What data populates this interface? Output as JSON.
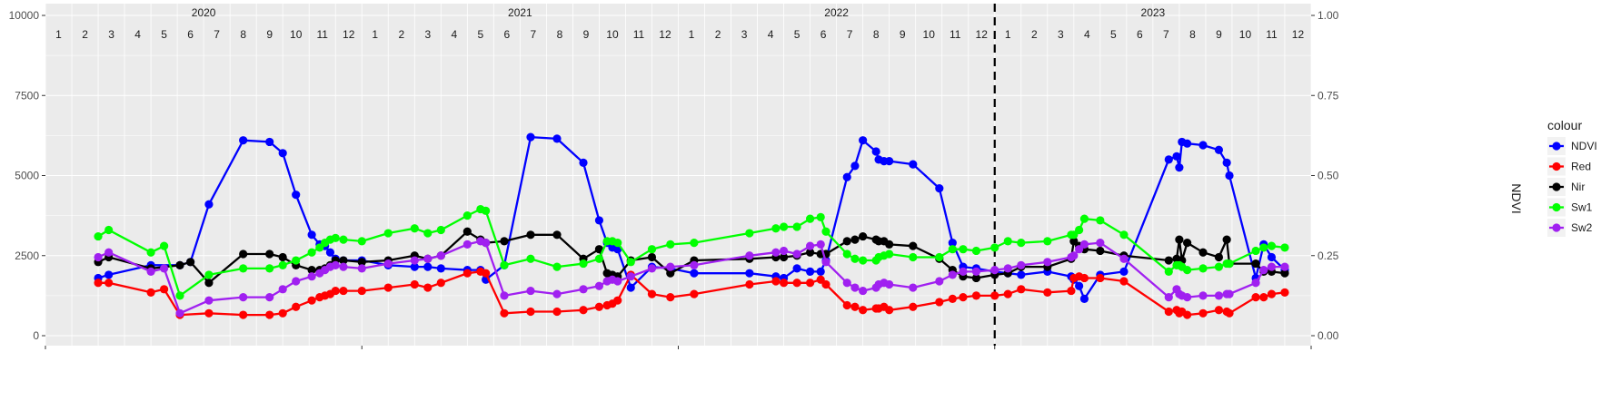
{
  "chart_data": {
    "type": "line",
    "title": "",
    "xlabel": "",
    "ylabel": "",
    "y2label": "NDVI",
    "ylim": [
      0,
      10000
    ],
    "y2lim": [
      0,
      1
    ],
    "yticks": [
      "0",
      "2500",
      "5000",
      "7500",
      "10000"
    ],
    "yticks_values": [
      0,
      2500,
      5000,
      7500,
      10000
    ],
    "y2ticks": [
      "0.00",
      "0.25",
      "0.50",
      "0.75",
      "1.00"
    ],
    "y2ticks_values": [
      0,
      0.25,
      0.5,
      0.75,
      1.0
    ],
    "xlim": [
      0,
      48
    ],
    "years": [
      {
        "label": "2020",
        "start": 0
      },
      {
        "label": "2021",
        "start": 12
      },
      {
        "label": "2022",
        "start": 24
      },
      {
        "label": "2023",
        "start": 36
      }
    ],
    "months": [
      "1",
      "2",
      "3",
      "4",
      "5",
      "6",
      "7",
      "8",
      "9",
      "10",
      "11",
      "12",
      "1",
      "2",
      "3",
      "4",
      "5",
      "6",
      "7",
      "8",
      "9",
      "10",
      "11",
      "12",
      "1",
      "2",
      "3",
      "4",
      "5",
      "6",
      "7",
      "8",
      "9",
      "10",
      "11",
      "12",
      "1",
      "2",
      "3",
      "4",
      "5",
      "6",
      "7",
      "8",
      "9",
      "10",
      "11",
      "12"
    ],
    "vline_x": 36,
    "legend": {
      "title": "colour",
      "position": "right"
    },
    "grid": true,
    "series": [
      {
        "name": "NDVI",
        "color": "#0000ff",
        "axis": "y2",
        "x": [
          2.0,
          2.4,
          4.0,
          5.1,
          5.5,
          6.2,
          7.5,
          8.5,
          9.0,
          9.5,
          10.1,
          10.4,
          10.6,
          10.8,
          11.0,
          11.3,
          12.0,
          13.0,
          14.0,
          14.5,
          15.0,
          16.0,
          16.5,
          16.7,
          17.4,
          18.4,
          19.4,
          20.4,
          21.0,
          21.3,
          21.5,
          21.7,
          22.2,
          23.0,
          23.7,
          24.6,
          26.7,
          27.7,
          28.0,
          28.5,
          29.0,
          29.4,
          29.6,
          30.4,
          30.7,
          31.0,
          31.5,
          31.6,
          31.8,
          32.0,
          32.9,
          33.9,
          34.4,
          34.8,
          35.3,
          36.0,
          36.5,
          37.0,
          38.0,
          38.9,
          39.0,
          39.2,
          39.4,
          40.0,
          40.9,
          42.6,
          42.9,
          43.0,
          43.1,
          43.3,
          43.9,
          44.5,
          44.8,
          44.9,
          45.9,
          46.2,
          46.5,
          47.0
        ],
        "y": [
          0.18,
          0.19,
          0.22,
          0.22,
          0.23,
          0.41,
          0.61,
          0.605,
          0.57,
          0.44,
          0.315,
          0.285,
          0.28,
          0.26,
          0.24,
          0.235,
          0.235,
          0.22,
          0.215,
          0.215,
          0.21,
          0.205,
          0.205,
          0.175,
          0.22,
          0.62,
          0.615,
          0.54,
          0.36,
          0.29,
          0.275,
          0.27,
          0.15,
          0.215,
          0.21,
          0.195,
          0.195,
          0.185,
          0.18,
          0.21,
          0.2,
          0.2,
          0.235,
          0.495,
          0.53,
          0.61,
          0.575,
          0.55,
          0.545,
          0.545,
          0.535,
          0.46,
          0.29,
          0.215,
          0.21,
          0.2,
          0.195,
          0.19,
          0.2,
          0.185,
          0.175,
          0.155,
          0.115,
          0.19,
          0.2,
          0.55,
          0.56,
          0.525,
          0.605,
          0.6,
          0.595,
          0.58,
          0.54,
          0.5,
          0.18,
          0.285,
          0.245,
          0.205
        ]
      },
      {
        "name": "Red",
        "color": "#ff0000",
        "axis": "y",
        "x": [
          2.0,
          2.4,
          4.0,
          4.5,
          5.1,
          6.2,
          7.5,
          8.5,
          9.0,
          9.5,
          10.1,
          10.4,
          10.6,
          10.8,
          11.0,
          11.3,
          12.0,
          13.0,
          14.0,
          14.5,
          15.0,
          16.0,
          16.5,
          16.7,
          17.4,
          18.4,
          19.4,
          20.4,
          21.0,
          21.3,
          21.5,
          21.7,
          22.2,
          23.0,
          23.7,
          24.6,
          26.7,
          27.7,
          28.0,
          28.5,
          29.0,
          29.4,
          29.6,
          30.4,
          30.7,
          31.0,
          31.5,
          31.6,
          31.8,
          32.0,
          32.9,
          33.9,
          34.4,
          34.8,
          35.3,
          36.0,
          36.5,
          37.0,
          38.0,
          38.9,
          39.0,
          39.2,
          39.4,
          40.0,
          40.9,
          42.6,
          42.9,
          43.0,
          43.1,
          43.3,
          43.9,
          44.5,
          44.8,
          44.9,
          45.9,
          46.2,
          46.5,
          47.0
        ],
        "y": [
          1650,
          1650,
          1350,
          1450,
          650,
          700,
          650,
          650,
          700,
          900,
          1100,
          1200,
          1250,
          1300,
          1400,
          1400,
          1400,
          1500,
          1600,
          1500,
          1650,
          1950,
          2000,
          1950,
          700,
          750,
          750,
          800,
          900,
          950,
          1000,
          1100,
          1900,
          1300,
          1200,
          1300,
          1600,
          1700,
          1650,
          1650,
          1650,
          1750,
          1600,
          950,
          900,
          800,
          850,
          850,
          900,
          800,
          900,
          1050,
          1150,
          1200,
          1250,
          1250,
          1300,
          1450,
          1350,
          1400,
          1800,
          1850,
          1800,
          1800,
          1700,
          750,
          800,
          700,
          750,
          650,
          700,
          800,
          750,
          700,
          1200,
          1200,
          1300,
          1350
        ]
      },
      {
        "name": "Nir",
        "color": "#000000",
        "axis": "y",
        "x": [
          2.0,
          2.4,
          4.0,
          5.1,
          5.5,
          6.2,
          7.5,
          8.5,
          9.0,
          9.5,
          10.1,
          10.4,
          10.6,
          10.8,
          11.0,
          11.3,
          12.0,
          13.0,
          14.0,
          14.5,
          15.0,
          16.0,
          16.5,
          16.7,
          17.4,
          18.4,
          19.4,
          20.4,
          21.0,
          21.3,
          21.5,
          21.7,
          22.2,
          23.0,
          23.7,
          24.6,
          26.7,
          27.7,
          28.0,
          28.5,
          29.0,
          29.4,
          29.6,
          30.4,
          30.7,
          31.0,
          31.5,
          31.6,
          31.8,
          32.0,
          32.9,
          33.9,
          34.4,
          34.8,
          35.3,
          36.0,
          36.5,
          37.0,
          38.0,
          38.9,
          39.0,
          39.2,
          39.4,
          40.0,
          40.9,
          42.6,
          42.9,
          43.0,
          43.1,
          43.3,
          43.9,
          44.5,
          44.8,
          44.9,
          45.9,
          46.2,
          46.5,
          47.0
        ],
        "y": [
          2300,
          2450,
          2100,
          2200,
          2300,
          1650,
          2550,
          2550,
          2450,
          2200,
          2050,
          2050,
          2100,
          2200,
          2350,
          2350,
          2300,
          2350,
          2500,
          2400,
          2500,
          3250,
          3000,
          2900,
          2950,
          3150,
          3150,
          2400,
          2700,
          1950,
          1900,
          1850,
          2350,
          2450,
          1950,
          2350,
          2400,
          2450,
          2450,
          2500,
          2600,
          2550,
          2550,
          2950,
          3000,
          3100,
          3000,
          2950,
          2950,
          2850,
          2800,
          2400,
          2050,
          1850,
          1800,
          1900,
          1950,
          2150,
          2150,
          2400,
          2950,
          2800,
          2700,
          2650,
          2500,
          2350,
          2400,
          3000,
          2350,
          2900,
          2600,
          2450,
          3000,
          2250,
          2250,
          2000,
          2000,
          1950
        ]
      },
      {
        "name": "Sw1",
        "color": "#00ff00",
        "axis": "y",
        "x": [
          2.0,
          2.4,
          4.0,
          4.5,
          5.1,
          6.2,
          7.5,
          8.5,
          9.0,
          9.5,
          10.1,
          10.4,
          10.6,
          10.8,
          11.0,
          11.3,
          12.0,
          13.0,
          14.0,
          14.5,
          15.0,
          16.0,
          16.5,
          16.7,
          17.4,
          18.4,
          19.4,
          20.4,
          21.0,
          21.3,
          21.5,
          21.7,
          22.2,
          23.0,
          23.7,
          24.6,
          26.7,
          27.7,
          28.0,
          28.5,
          29.0,
          29.4,
          29.6,
          30.4,
          30.7,
          31.0,
          31.5,
          31.6,
          31.8,
          32.0,
          32.9,
          33.9,
          34.4,
          34.8,
          35.3,
          36.0,
          36.5,
          37.0,
          38.0,
          38.9,
          39.0,
          39.2,
          39.4,
          40.0,
          40.9,
          42.6,
          42.9,
          43.0,
          43.1,
          43.3,
          43.9,
          44.5,
          44.8,
          44.9,
          45.9,
          46.2,
          46.5,
          47.0
        ],
        "y": [
          3100,
          3300,
          2600,
          2800,
          1250,
          1900,
          2100,
          2100,
          2200,
          2350,
          2600,
          2750,
          2900,
          3000,
          3050,
          3000,
          2950,
          3200,
          3350,
          3200,
          3300,
          3750,
          3950,
          3900,
          2200,
          2400,
          2150,
          2250,
          2400,
          2950,
          2950,
          2900,
          2300,
          2700,
          2850,
          2900,
          3200,
          3350,
          3400,
          3400,
          3650,
          3700,
          3250,
          2550,
          2400,
          2350,
          2350,
          2450,
          2500,
          2550,
          2450,
          2450,
          2700,
          2700,
          2650,
          2750,
          2950,
          2900,
          2950,
          3150,
          3150,
          3300,
          3650,
          3600,
          3150,
          2000,
          2200,
          2200,
          2150,
          2050,
          2100,
          2150,
          2250,
          2250,
          2650,
          2750,
          2800,
          2750
        ]
      },
      {
        "name": "Sw2",
        "color": "#a020f0",
        "axis": "y",
        "x": [
          2.0,
          2.4,
          4.0,
          4.5,
          5.1,
          6.2,
          7.5,
          8.5,
          9.0,
          9.5,
          10.1,
          10.4,
          10.6,
          10.8,
          11.0,
          11.3,
          12.0,
          13.0,
          14.0,
          14.5,
          15.0,
          16.0,
          16.5,
          16.7,
          17.4,
          18.4,
          19.4,
          20.4,
          21.0,
          21.3,
          21.5,
          21.7,
          22.2,
          23.0,
          23.7,
          24.6,
          26.7,
          27.7,
          28.0,
          28.5,
          29.0,
          29.4,
          29.6,
          30.4,
          30.7,
          31.0,
          31.5,
          31.6,
          31.8,
          32.0,
          32.9,
          33.9,
          34.4,
          34.8,
          35.3,
          36.0,
          36.5,
          37.0,
          38.0,
          38.9,
          39.0,
          39.2,
          39.4,
          40.0,
          40.9,
          42.6,
          42.9,
          43.0,
          43.1,
          43.3,
          43.9,
          44.5,
          44.8,
          44.9,
          45.9,
          46.2,
          46.5,
          47.0
        ],
        "y": [
          2450,
          2600,
          2000,
          2100,
          700,
          1100,
          1200,
          1200,
          1450,
          1700,
          1850,
          1950,
          2050,
          2150,
          2200,
          2150,
          2100,
          2250,
          2350,
          2400,
          2500,
          2850,
          2950,
          2900,
          1250,
          1400,
          1300,
          1450,
          1550,
          1700,
          1750,
          1700,
          1850,
          2100,
          2150,
          2200,
          2500,
          2600,
          2650,
          2550,
          2800,
          2850,
          2300,
          1650,
          1500,
          1400,
          1500,
          1600,
          1650,
          1600,
          1500,
          1700,
          1900,
          2000,
          2000,
          2050,
          2100,
          2200,
          2300,
          2450,
          2500,
          2700,
          2850,
          2900,
          2400,
          1200,
          1450,
          1300,
          1250,
          1200,
          1250,
          1250,
          1300,
          1300,
          1650,
          2050,
          2150,
          2150
        ]
      }
    ]
  }
}
